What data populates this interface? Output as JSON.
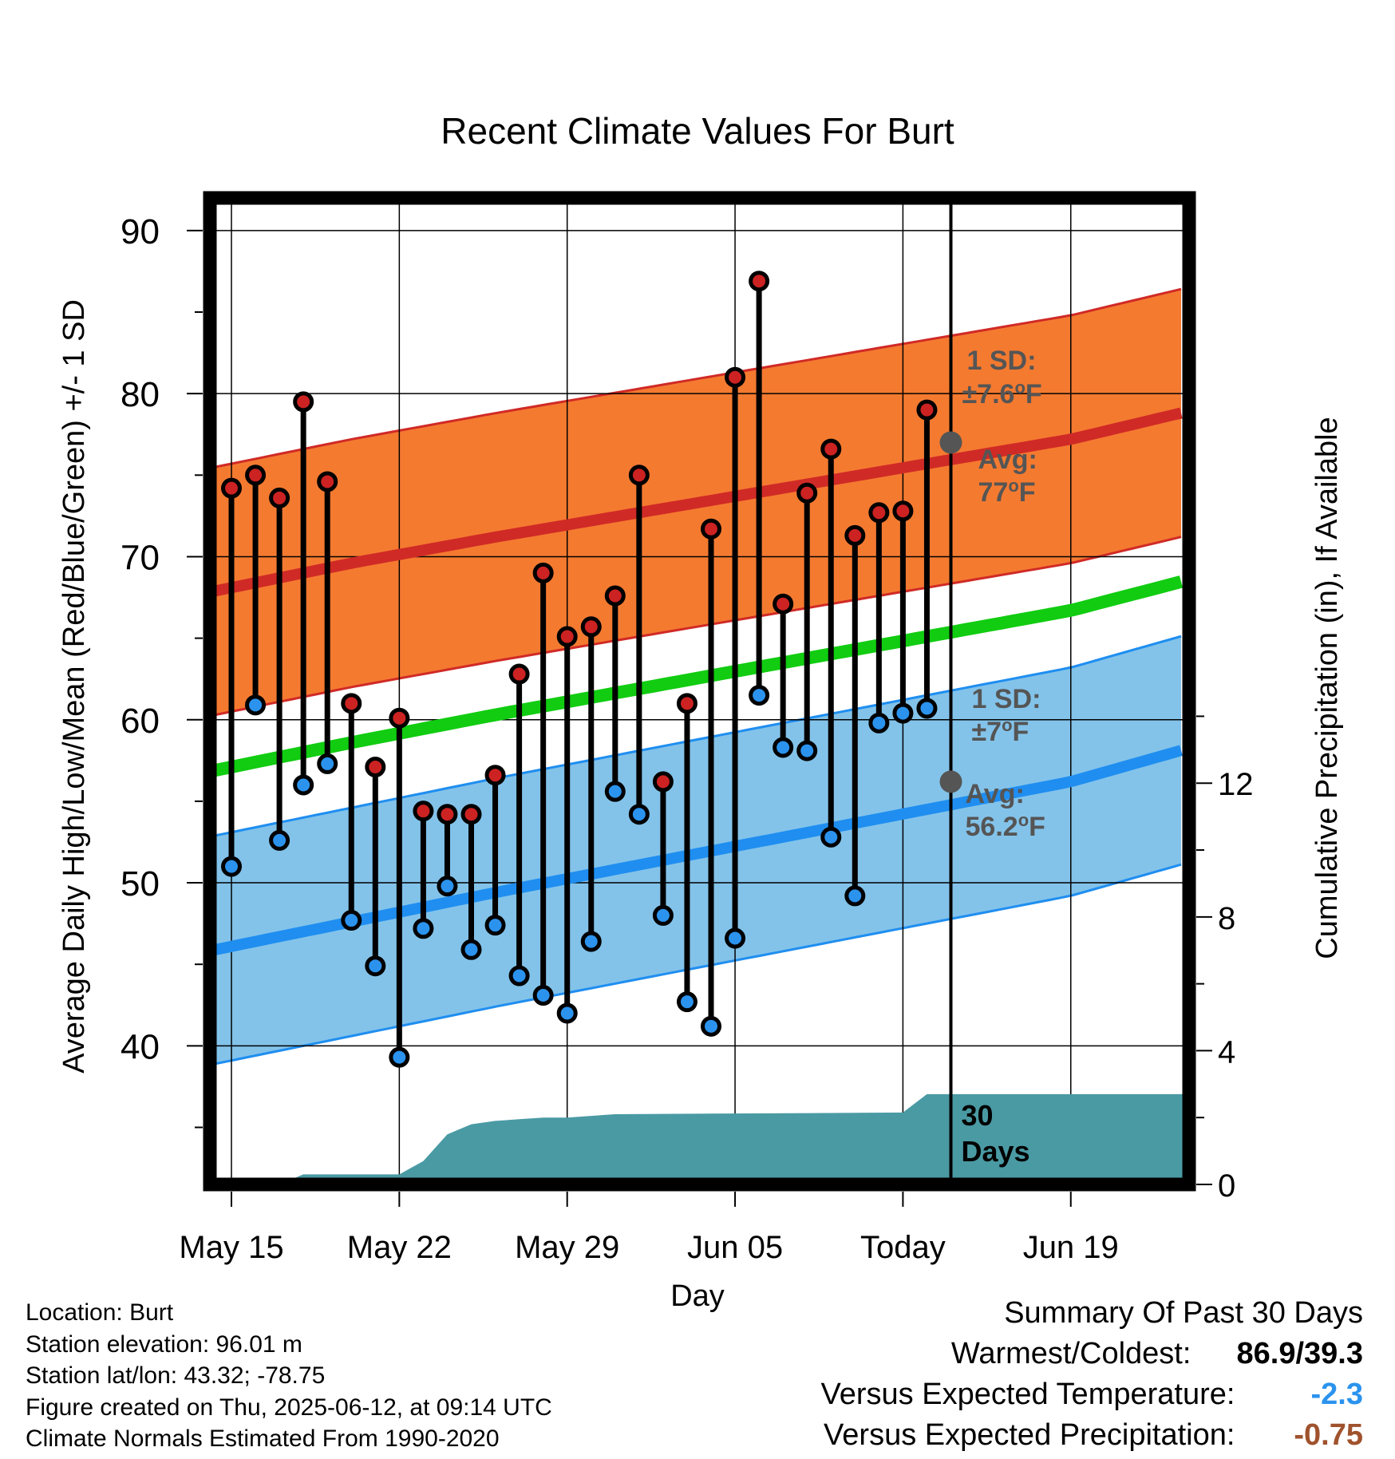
{
  "chart_data": {
    "type": "line",
    "title": "Recent Climate Values For Burt",
    "xlabel": "Day",
    "ylabel": "Average Daily High/Low/Mean (Red/Blue/Green) +/- 1 SD",
    "y2label": "Cumulative Precipitation (in), If Available",
    "x_ticks": [
      "May 15",
      "May 22",
      "May 29",
      "Jun 05",
      "Today",
      "Jun 19"
    ],
    "ylim": [
      31.5,
      92
    ],
    "y_ticks": [
      40,
      50,
      60,
      70,
      80,
      90
    ],
    "y2lim": [
      0,
      29.5
    ],
    "y2_ticks": [
      0,
      4,
      8,
      12
    ],
    "grid": true,
    "daily_highs": [
      74.2,
      75.0,
      73.6,
      79.5,
      74.6,
      61.0,
      57.1,
      60.1,
      54.4,
      54.2,
      54.2,
      56.6,
      62.8,
      69.0,
      65.1,
      65.7,
      67.6,
      75.0,
      56.2,
      61.0,
      71.7,
      81.0,
      86.9,
      67.1,
      73.9,
      76.6,
      71.3,
      72.7,
      72.8,
      79.0
    ],
    "daily_lows": [
      51.0,
      60.9,
      52.6,
      56.0,
      57.3,
      47.7,
      44.9,
      39.3,
      47.2,
      49.8,
      45.9,
      47.4,
      44.3,
      43.1,
      42.0,
      46.4,
      55.6,
      54.2,
      48.0,
      42.7,
      41.2,
      46.6,
      61.5,
      58.3,
      58.1,
      52.8,
      49.2,
      59.8,
      60.4,
      60.7
    ],
    "normal_high": {
      "name": "Avg",
      "days": [
        -1,
        5,
        11,
        17,
        23,
        29,
        35,
        41
      ],
      "values": [
        67.8,
        69.6,
        71.2,
        72.7,
        74.2,
        75.7,
        77.2,
        79.3
      ],
      "today_value": 77,
      "sd": 7.6,
      "label_sd": "1 SD:",
      "label_sd_value": "±7.6",
      "label_avg": "Avg:",
      "label_avg_value": "77"
    },
    "normal_low": {
      "name": "Avg",
      "days": [
        -1,
        5,
        11,
        17,
        23,
        29,
        35,
        41
      ],
      "values": [
        45.8,
        47.6,
        49.4,
        51.1,
        52.8,
        54.5,
        56.2,
        58.7
      ],
      "today_value": 56.2,
      "sd": 7,
      "label_sd": "1 SD:",
      "label_sd_value": "±7",
      "label_avg": "Avg:",
      "label_avg_value": "56.2"
    },
    "normal_mean": {
      "days": [
        -1,
        5,
        11,
        17,
        23,
        29,
        35,
        41
      ],
      "values": [
        56.8,
        58.6,
        60.3,
        61.9,
        63.5,
        65.1,
        66.7,
        69.0
      ]
    },
    "precip_cumulative": {
      "days": [
        0,
        2,
        3,
        7,
        8,
        9,
        10,
        11,
        12,
        13,
        14,
        15,
        16,
        28,
        29,
        41
      ],
      "values": [
        0,
        0,
        0.3,
        0.3,
        0.7,
        1.5,
        1.8,
        1.9,
        1.95,
        2.0,
        2.0,
        2.05,
        2.1,
        2.15,
        2.7,
        2.7
      ]
    },
    "period_label": "30",
    "period_label_unit": "Days",
    "unit": "°F",
    "colors": {
      "high_band": "#f47a30",
      "high_line": "#d02a26",
      "low_band": "#83c3ea",
      "low_line": "#1f8ef0",
      "mean_line": "#11cc11",
      "precip": "#4a9aa4",
      "high_marker": "#cc2222",
      "low_marker": "#2b93ee",
      "annotation": "#555555",
      "frame": "#000000"
    }
  },
  "footer": {
    "location": "Location: Burt",
    "elevation": "Station elevation: 96.01 m",
    "latlon": "Station lat/lon: 43.32; -78.75",
    "created": "Figure created on Thu, 2025-06-12, at 09:14 UTC",
    "normals": "Climate Normals Estimated From 1990-2020"
  },
  "summary": {
    "title": "Summary Of Past 30 Days",
    "warm_cold_label": "Warmest/Coldest:",
    "warm_cold_value": "86.9/39.3",
    "temp_label": "Versus Expected Temperature:",
    "temp_value": "-2.3",
    "temp_color": "#2b93ee",
    "precip_label": "Versus Expected Precipitation:",
    "precip_value": "-0.75",
    "precip_color": "#a0522d"
  }
}
